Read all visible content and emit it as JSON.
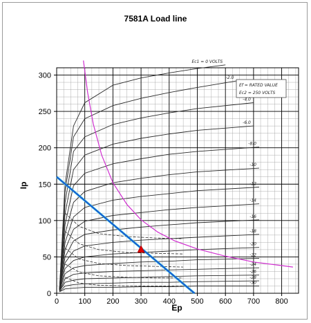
{
  "chart_data": {
    "type": "line",
    "title": "7581A Load line",
    "xlabel": "Ep",
    "ylabel": "Ip",
    "xlim": [
      0,
      860
    ],
    "ylim": [
      0,
      310
    ],
    "x_ticks": [
      0,
      100,
      200,
      300,
      400,
      500,
      600,
      700,
      800
    ],
    "y_ticks": [
      0,
      50,
      100,
      150,
      200,
      250,
      300
    ],
    "grid": true,
    "legend": "none",
    "datasheet_note": [
      "Ef = RATED VALUE",
      "Ec2 = 250 VOLTS"
    ],
    "colors": {
      "load_line": "#1a4fd0",
      "load_line_shadow": "#3fd0e0",
      "dissipation": "#d030d0",
      "operating_point": "#e00000",
      "plate_curves": "#2a2a2a",
      "grid": "#000000"
    },
    "series": [
      {
        "kind": "plate",
        "label": "Ec1 = 0 VOLTS",
        "x": [
          10,
          30,
          60,
          100,
          200,
          300,
          400,
          500,
          600
        ],
        "y": [
          5,
          150,
          230,
          262,
          286,
          296,
          303,
          309,
          314
        ]
      },
      {
        "kind": "plate",
        "label": "-2.0",
        "x": [
          10,
          30,
          60,
          100,
          200,
          300,
          400,
          500,
          640
        ],
        "y": [
          5,
          140,
          215,
          240,
          258,
          268,
          276,
          283,
          292
        ]
      },
      {
        "kind": "plate",
        "label": "-4.0",
        "x": [
          10,
          30,
          60,
          100,
          200,
          300,
          400,
          500,
          700
        ],
        "y": [
          5,
          125,
          195,
          215,
          232,
          241,
          248,
          254,
          262
        ]
      },
      {
        "kind": "plate",
        "label": "-6.0",
        "x": [
          10,
          30,
          60,
          100,
          200,
          300,
          400,
          500,
          700
        ],
        "y": [
          5,
          110,
          170,
          190,
          205,
          213,
          219,
          224,
          230
        ]
      },
      {
        "kind": "plate",
        "label": "-8.0",
        "x": [
          10,
          30,
          60,
          100,
          200,
          300,
          400,
          500,
          720
        ],
        "y": [
          5,
          95,
          148,
          165,
          178,
          185,
          191,
          195,
          201
        ]
      },
      {
        "kind": "plate",
        "label": "-10",
        "x": [
          10,
          30,
          60,
          100,
          200,
          300,
          400,
          500,
          720
        ],
        "y": [
          5,
          82,
          125,
          140,
          152,
          158,
          163,
          167,
          172
        ]
      },
      {
        "kind": "plate",
        "label": "-12",
        "x": [
          10,
          30,
          60,
          100,
          200,
          300,
          400,
          500,
          720
        ],
        "y": [
          5,
          70,
          105,
          118,
          128,
          133,
          137,
          141,
          146
        ]
      },
      {
        "kind": "plate",
        "label": "-14",
        "x": [
          10,
          30,
          60,
          100,
          200,
          300,
          400,
          500,
          720
        ],
        "y": [
          5,
          60,
          88,
          99,
          107,
          111,
          115,
          118,
          123
        ]
      },
      {
        "kind": "plate",
        "label": "-16",
        "x": [
          10,
          30,
          60,
          100,
          200,
          300,
          400,
          500,
          720
        ],
        "y": [
          5,
          50,
          72,
          81,
          87,
          91,
          94,
          97,
          101
        ]
      },
      {
        "kind": "plate",
        "label": "-18",
        "x": [
          10,
          30,
          60,
          100,
          200,
          300,
          400,
          500,
          720
        ],
        "y": [
          5,
          42,
          58,
          65,
          70,
          73,
          75,
          77,
          81
        ]
      },
      {
        "kind": "plate",
        "label": "-20",
        "x": [
          10,
          30,
          60,
          100,
          200,
          300,
          400,
          500,
          720
        ],
        "y": [
          4,
          34,
          45,
          50,
          54,
          56,
          58,
          60,
          63
        ]
      },
      {
        "kind": "plate",
        "label": "-22",
        "x": [
          10,
          30,
          60,
          100,
          200,
          300,
          400,
          500,
          720
        ],
        "y": [
          4,
          27,
          35,
          38,
          41,
          43,
          44,
          46,
          48
        ]
      },
      {
        "kind": "plate",
        "label": "-24",
        "x": [
          10,
          30,
          60,
          100,
          200,
          300,
          400,
          500,
          720
        ],
        "y": [
          3,
          20,
          26,
          28,
          30,
          31,
          32,
          33,
          35
        ]
      },
      {
        "kind": "plate",
        "label": "-26",
        "x": [
          10,
          30,
          60,
          100,
          200,
          300,
          400,
          500,
          720
        ],
        "y": [
          3,
          15,
          18,
          20,
          21,
          22,
          23,
          24,
          25
        ]
      },
      {
        "kind": "plate",
        "label": "-28",
        "x": [
          10,
          30,
          60,
          100,
          200,
          300,
          400,
          500,
          720
        ],
        "y": [
          2,
          10,
          12,
          13,
          14,
          15,
          15,
          16,
          17
        ]
      },
      {
        "kind": "plate",
        "label": "-30",
        "x": [
          10,
          30,
          60,
          100,
          200,
          300,
          400,
          500,
          720
        ],
        "y": [
          2,
          6,
          7,
          8,
          8,
          9,
          9,
          10,
          10
        ]
      },
      {
        "kind": "screen",
        "label": "",
        "x": [
          30,
          80,
          150,
          250,
          350,
          450
        ],
        "y": [
          110,
          92,
          82,
          78,
          76,
          75
        ]
      },
      {
        "kind": "screen",
        "label": "",
        "x": [
          30,
          80,
          150,
          250,
          350,
          450
        ],
        "y": [
          85,
          68,
          60,
          56,
          55,
          54
        ]
      },
      {
        "kind": "screen",
        "label": "",
        "x": [
          30,
          80,
          150,
          250,
          350,
          450
        ],
        "y": [
          62,
          47,
          41,
          38,
          37,
          36
        ]
      },
      {
        "kind": "screen",
        "label": "",
        "x": [
          30,
          80,
          150,
          250,
          350,
          450
        ],
        "y": [
          40,
          29,
          24,
          22,
          21,
          21
        ]
      },
      {
        "kind": "screen",
        "label": "",
        "x": [
          30,
          80,
          150,
          250,
          350,
          450
        ],
        "y": [
          22,
          14,
          11,
          10,
          10,
          10
        ]
      },
      {
        "kind": "dissipation",
        "label": "",
        "x": [
          95,
          110,
          130,
          160,
          200,
          250,
          300,
          360,
          420,
          500,
          600,
          700,
          800,
          840
        ],
        "y": [
          320,
          276,
          233,
          190,
          152,
          122,
          101,
          84,
          72,
          61,
          51,
          43,
          38,
          36
        ]
      },
      {
        "kind": "load",
        "label": "",
        "x": [
          0,
          490
        ],
        "y": [
          160,
          0
        ]
      }
    ],
    "operating_point": {
      "x": 300,
      "y": 60
    }
  }
}
